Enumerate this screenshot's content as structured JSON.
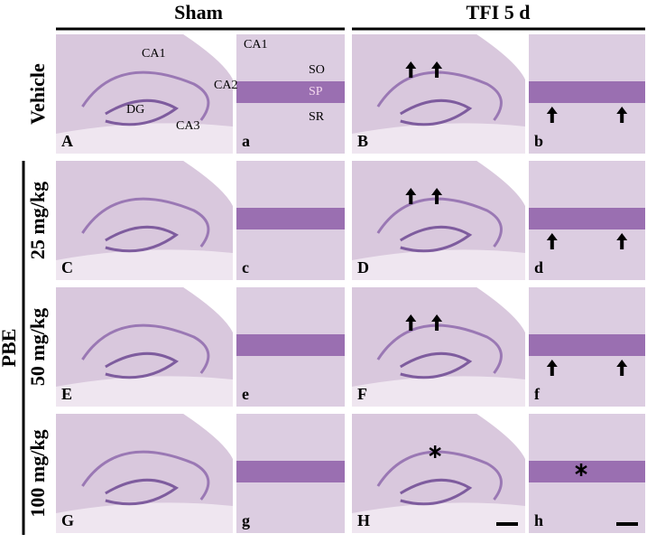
{
  "header": {
    "sham": "Sham",
    "tfi": "TFI 5 d"
  },
  "group_label": "PBE",
  "rows": [
    {
      "label": "Vehicle",
      "panels": [
        "A",
        "a",
        "B",
        "b"
      ]
    },
    {
      "label": "25 mg/kg",
      "panels": [
        "C",
        "c",
        "D",
        "d"
      ]
    },
    {
      "label": "50 mg/kg",
      "panels": [
        "E",
        "e",
        "F",
        "f"
      ]
    },
    {
      "label": "100 mg/kg",
      "panels": [
        "G",
        "g",
        "H",
        "h"
      ]
    }
  ],
  "overview_regions": {
    "ca1": "CA1",
    "ca2": "CA2",
    "dg": "DG",
    "ca3": "CA3"
  },
  "detail_regions": {
    "ca1": "CA1",
    "so": "SO",
    "sp": "SP",
    "sr": "SR"
  }
}
